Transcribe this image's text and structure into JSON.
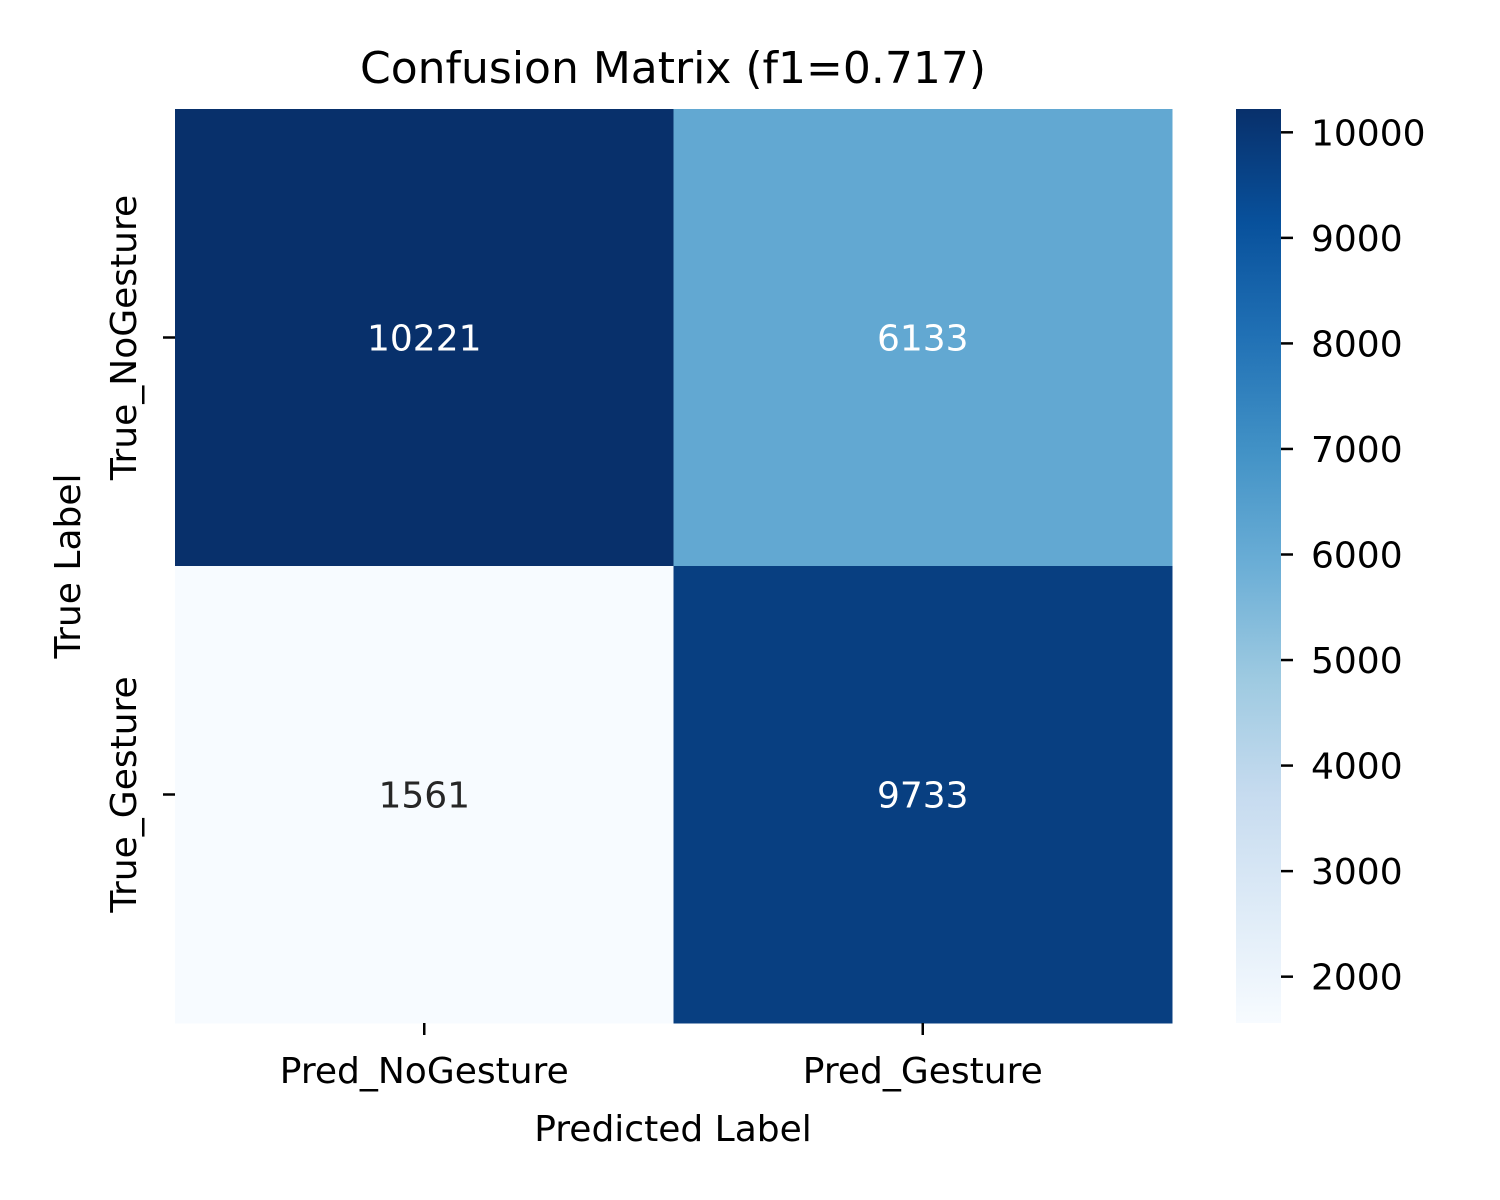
{
  "chart_data": {
    "type": "heatmap",
    "title": "Confusion Matrix (f1=0.717)",
    "xlabel": "Predicted Label",
    "ylabel": "True Label",
    "x_categories": [
      "Pred_NoGesture",
      "Pred_Gesture"
    ],
    "y_categories": [
      "True_NoGesture",
      "True_Gesture"
    ],
    "values": [
      [
        10221,
        6133
      ],
      [
        1561,
        9733
      ]
    ],
    "colormap": "Blues",
    "colorbar": {
      "range": [
        1561,
        10221
      ],
      "ticks": [
        2000,
        3000,
        4000,
        5000,
        6000,
        7000,
        8000,
        9000,
        10000
      ]
    },
    "annotation_colors": {
      "dark": "#262626",
      "light": "#ffffff"
    }
  }
}
